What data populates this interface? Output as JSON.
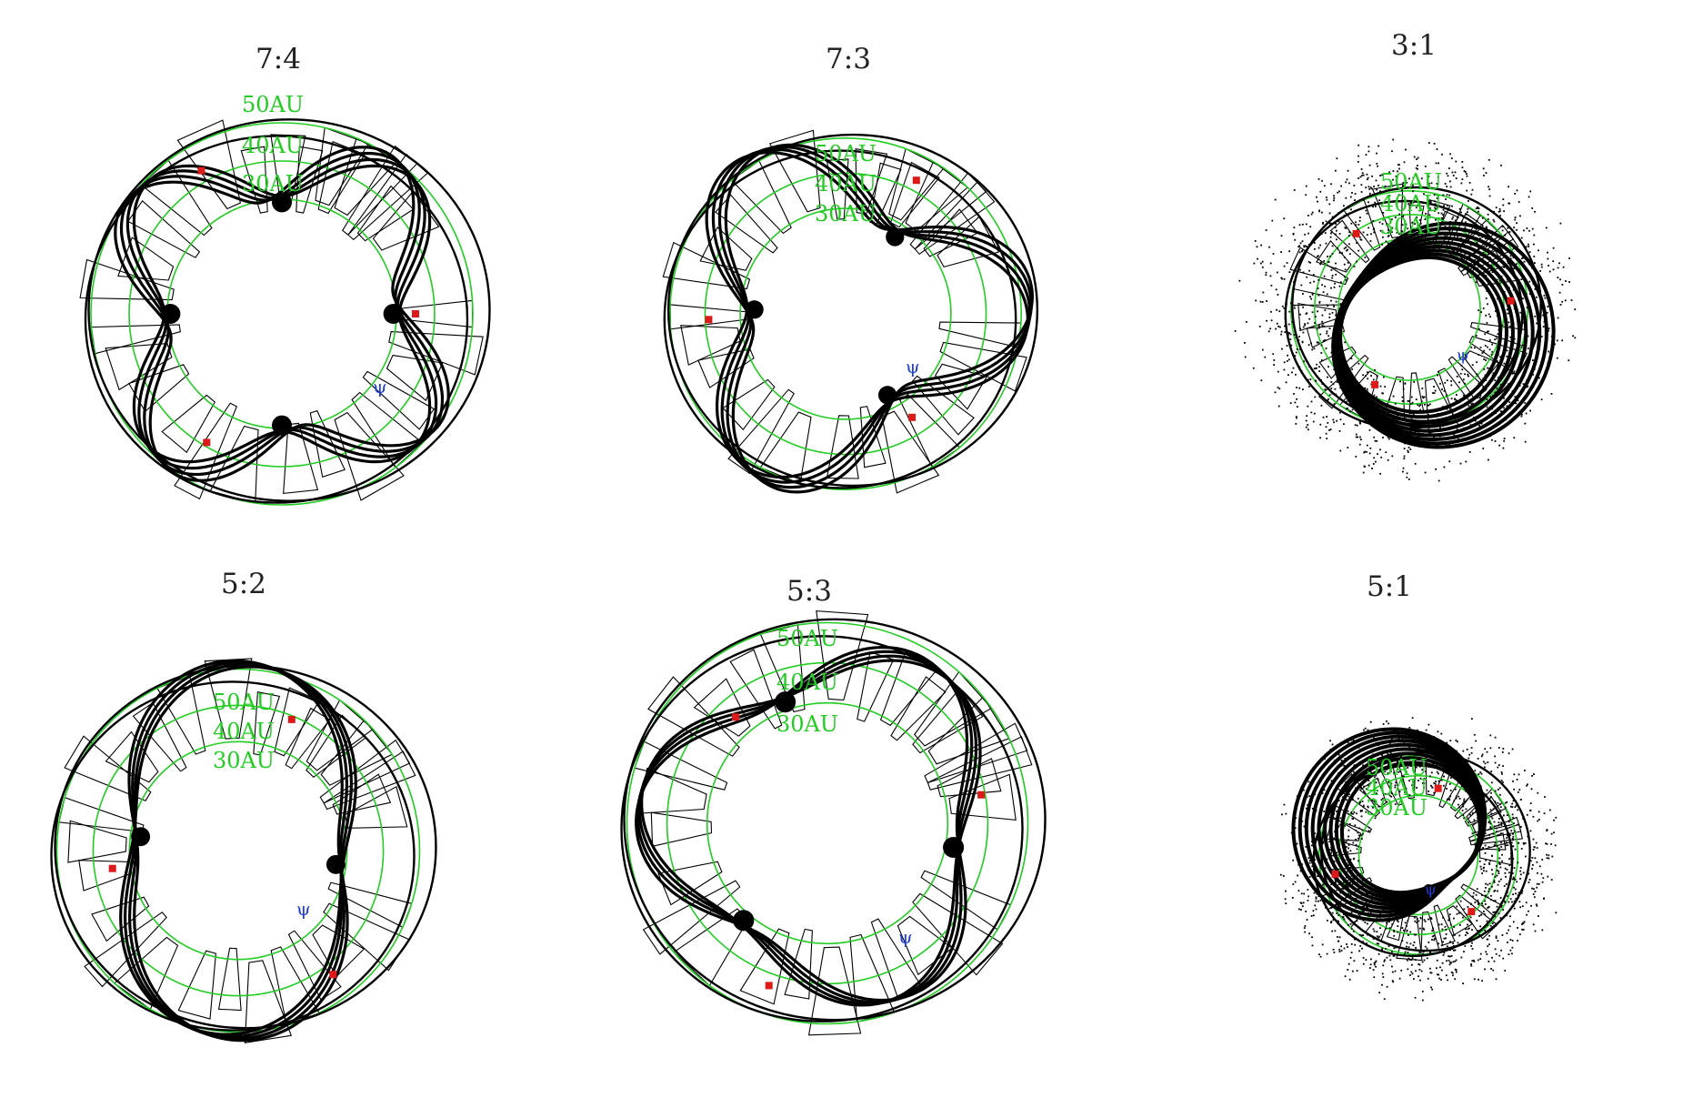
{
  "figure": {
    "description_visible_text_only": true,
    "colors": {
      "distance_rings": "#22cc22",
      "ring_labels": "#22cc22",
      "particles": "#000000",
      "field_outlines": "#000000",
      "known_objects": "#dd1a1a",
      "neptune_symbol": "#1f3fd6",
      "background": "#ffffff"
    },
    "icon_names": {
      "neptune": "neptune-symbol-icon",
      "objects": "red-square-marker-icon"
    },
    "neptune_symbol": "ψ",
    "panels": [
      {
        "id": "p74",
        "title": "7:4",
        "ring_labels": [
          "50AU",
          "40AU",
          "30AU"
        ],
        "resonance_p": 7,
        "resonance_q": 4,
        "style": "lobes",
        "radii_au": [
          30,
          40,
          50
        ]
      },
      {
        "id": "p73",
        "title": "7:3",
        "ring_labels": [
          "50AU",
          "40AU",
          "30AU"
        ],
        "resonance_p": 7,
        "resonance_q": 3,
        "style": "lobes",
        "radii_au": [
          30,
          40,
          50
        ]
      },
      {
        "id": "p31",
        "title": "3:1",
        "ring_labels": [
          "50AU",
          "40AU",
          "30AU"
        ],
        "resonance_p": 3,
        "resonance_q": 1,
        "style": "scattered",
        "radii_au": [
          30,
          40,
          50
        ]
      },
      {
        "id": "p52",
        "title": "5:2",
        "ring_labels": [
          "50AU",
          "40AU",
          "30AU"
        ],
        "resonance_p": 5,
        "resonance_q": 2,
        "style": "lobes",
        "radii_au": [
          30,
          40,
          50
        ]
      },
      {
        "id": "p53",
        "title": "5:3",
        "ring_labels": [
          "50AU",
          "40AU",
          "30AU"
        ],
        "resonance_p": 5,
        "resonance_q": 3,
        "style": "lobes",
        "radii_au": [
          30,
          40,
          50
        ]
      },
      {
        "id": "p51",
        "title": "5:1",
        "ring_labels": [
          "50AU",
          "40AU",
          "30AU"
        ],
        "resonance_p": 5,
        "resonance_q": 1,
        "style": "scattered",
        "radii_au": [
          30,
          40,
          50
        ]
      }
    ]
  }
}
